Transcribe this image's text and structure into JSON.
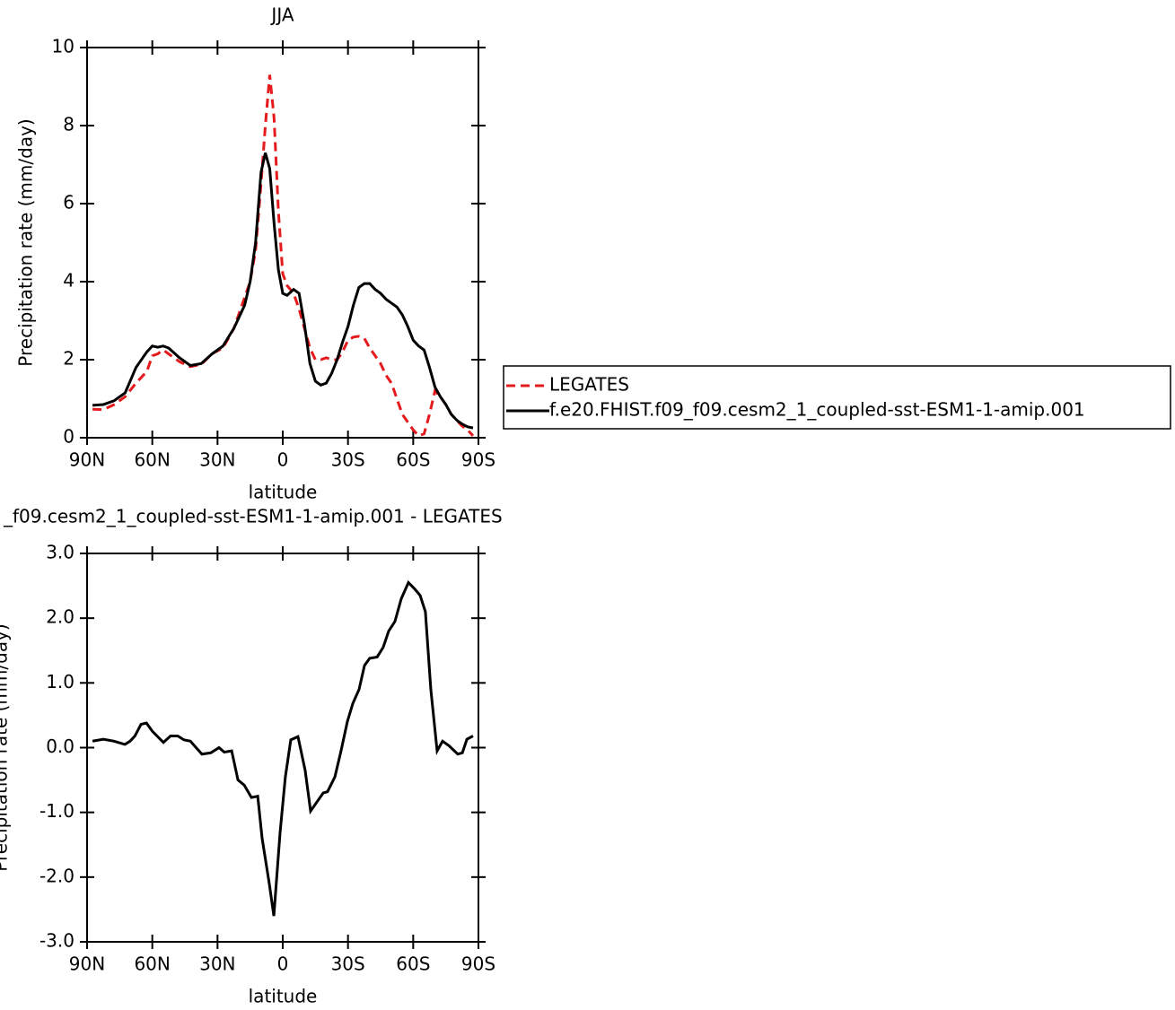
{
  "chart_data": [
    {
      "type": "line",
      "title": "JJA",
      "xlabel": "latitude",
      "ylabel": "Precipitation rate (mm/day)",
      "x": [
        87.5,
        82.5,
        77.5,
        72.5,
        67.5,
        62.5,
        60,
        57.5,
        55,
        52.5,
        47.5,
        42.5,
        37.5,
        32.5,
        27.5,
        22.5,
        17.5,
        15,
        12.5,
        10,
        8,
        6,
        4,
        2,
        0,
        -2,
        -5,
        -7.5,
        -10,
        -12.5,
        -15,
        -17.5,
        -20,
        -22.5,
        -25,
        -27.5,
        -30,
        -32.5,
        -35,
        -37.5,
        -40,
        -42.5,
        -45,
        -47.5,
        -50,
        -52.5,
        -55,
        -57.5,
        -60,
        -62.5,
        -65,
        -67.5,
        -70,
        -72.5,
        -75,
        -77.5,
        -80,
        -82.5,
        -85,
        -87.5
      ],
      "series": [
        {
          "name": "LEGATES",
          "color": "#e41a1c",
          "style": "dashed",
          "values": [
            0.73,
            0.72,
            0.85,
            1.05,
            1.4,
            1.7,
            2.1,
            2.15,
            2.25,
            2.15,
            1.95,
            1.82,
            1.88,
            2.15,
            2.3,
            2.8,
            3.6,
            4.0,
            4.8,
            6.5,
            8.0,
            9.3,
            8.2,
            5.8,
            4.2,
            3.9,
            3.7,
            3.3,
            2.8,
            2.3,
            2.0,
            2.0,
            2.05,
            2.0,
            2.0,
            2.2,
            2.5,
            2.58,
            2.6,
            2.55,
            2.3,
            2.1,
            1.9,
            1.6,
            1.4,
            1.0,
            0.6,
            0.4,
            0.2,
            0.05,
            0.1,
            0.6,
            1.2,
            1.05,
            0.85,
            0.6,
            0.45,
            0.3,
            0.2,
            0.05
          ]
        },
        {
          "name": "f.e20.FHIST.f09_f09.cesm2_1_coupled-sst-ESM1-1-amip.001",
          "color": "#000000",
          "style": "solid",
          "values": [
            0.83,
            0.85,
            0.95,
            1.15,
            1.8,
            2.2,
            2.35,
            2.32,
            2.35,
            2.3,
            2.05,
            1.85,
            1.9,
            2.15,
            2.35,
            2.8,
            3.4,
            4.0,
            5.0,
            6.8,
            7.3,
            6.9,
            5.5,
            4.3,
            3.7,
            3.65,
            3.8,
            3.7,
            2.9,
            1.9,
            1.45,
            1.35,
            1.4,
            1.65,
            2.0,
            2.45,
            2.85,
            3.4,
            3.85,
            3.95,
            3.95,
            3.8,
            3.7,
            3.55,
            3.45,
            3.35,
            3.15,
            2.85,
            2.5,
            2.35,
            2.25,
            1.8,
            1.3,
            1.05,
            0.85,
            0.6,
            0.45,
            0.35,
            0.28,
            0.25
          ]
        }
      ],
      "xlim": [
        90,
        -90
      ],
      "xticks": [
        {
          "value": 90,
          "label": "90N"
        },
        {
          "value": 60,
          "label": "60N"
        },
        {
          "value": 30,
          "label": "30N"
        },
        0,
        {
          "value": -30,
          "label": "30S"
        },
        {
          "value": -60,
          "label": "60S"
        },
        {
          "value": -90,
          "label": "90S"
        }
      ],
      "ylim": [
        0,
        10
      ],
      "yticks": [
        0,
        2,
        4,
        6,
        8,
        10
      ],
      "legend": "right"
    },
    {
      "type": "line",
      "title": "_f09.cesm2_1_coupled-sst-ESM1-1-amip.001 - LEGATES",
      "xlabel": "latitude",
      "ylabel": "Precipitation rate (mm/day)",
      "x": [
        87.5,
        82.5,
        77.6,
        72.6,
        70.2,
        68,
        65.2,
        62.7,
        59.9,
        54.9,
        51.6,
        48.3,
        45.4,
        42.5,
        37.2,
        33.1,
        29.3,
        26.9,
        23.5,
        20.6,
        17.7,
        14.4,
        11.5,
        9.5,
        6.2,
        4.1,
        1.2,
        -1.2,
        -3.7,
        -7,
        -10.3,
        -12.8,
        -18.6,
        -20.6,
        -24,
        -26.8,
        -29.7,
        -32.2,
        -35.1,
        -37.6,
        -40,
        -43.4,
        -46.2,
        -48.7,
        -51.6,
        -54.5,
        -57.8,
        -60.7,
        -63.2,
        -65.6,
        -68.1,
        -71,
        -73.5,
        -76.4,
        -80.5,
        -82.6,
        -84.7,
        -87.5
      ],
      "series": [
        {
          "color": "#000000",
          "style": "solid",
          "values": [
            0.1,
            0.13,
            0.1,
            0.05,
            0.1,
            0.18,
            0.36,
            0.38,
            0.25,
            0.08,
            0.18,
            0.18,
            0.12,
            0.1,
            -0.1,
            -0.08,
            0.0,
            -0.07,
            -0.05,
            -0.5,
            -0.58,
            -0.77,
            -0.75,
            -1.4,
            -2.1,
            -2.6,
            -1.3,
            -0.45,
            0.12,
            0.17,
            -0.35,
            -0.98,
            -0.7,
            -0.68,
            -0.45,
            -0.05,
            0.4,
            0.68,
            0.9,
            1.27,
            1.38,
            1.4,
            1.55,
            1.8,
            1.95,
            2.3,
            2.55,
            2.45,
            2.35,
            2.1,
            0.9,
            -0.05,
            0.1,
            0.03,
            -0.1,
            -0.08,
            0.13,
            0.18
          ]
        }
      ],
      "xlim": [
        90,
        -90
      ],
      "xticks": [
        {
          "value": 90,
          "label": "90N"
        },
        {
          "value": 60,
          "label": "60N"
        },
        {
          "value": 30,
          "label": "30N"
        },
        0,
        {
          "value": -30,
          "label": "30S"
        },
        {
          "value": -60,
          "label": "60S"
        },
        {
          "value": -90,
          "label": "90S"
        }
      ],
      "ylim": [
        -3,
        3
      ],
      "yticks": [
        {
          "value": -3,
          "label": "-3.0"
        },
        {
          "value": -2,
          "label": "-2.0"
        },
        {
          "value": -1,
          "label": "-1.0"
        },
        {
          "value": 0,
          "label": "0.0"
        },
        {
          "value": 1,
          "label": "1.0"
        },
        {
          "value": 2,
          "label": "2.0"
        },
        {
          "value": 3,
          "label": "3.0"
        }
      ]
    }
  ]
}
